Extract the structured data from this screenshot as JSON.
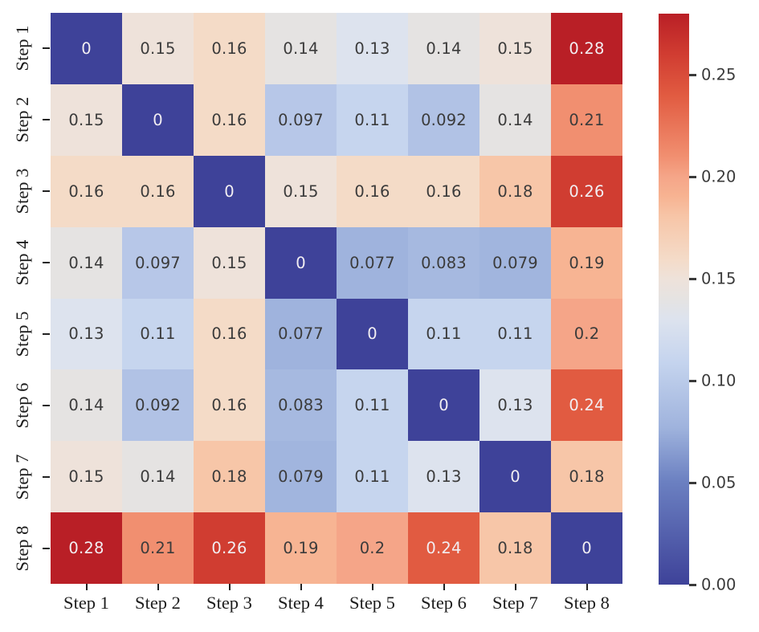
{
  "figure": {
    "background": "#ffffff"
  },
  "chart_data": {
    "type": "heatmap",
    "title": "",
    "xlabel": "",
    "ylabel": "",
    "row_labels": [
      "Step 1",
      "Step 2",
      "Step 3",
      "Step 4",
      "Step 5",
      "Step 6",
      "Step 7",
      "Step 8"
    ],
    "col_labels": [
      "Step 1",
      "Step 2",
      "Step 3",
      "Step 4",
      "Step 5",
      "Step 6",
      "Step 7",
      "Step 8"
    ],
    "matrix": [
      [
        "0",
        "0.15",
        "0.16",
        "0.14",
        "0.13",
        "0.14",
        "0.15",
        "0.28"
      ],
      [
        "0.15",
        "0",
        "0.16",
        "0.097",
        "0.11",
        "0.092",
        "0.14",
        "0.21"
      ],
      [
        "0.16",
        "0.16",
        "0",
        "0.15",
        "0.16",
        "0.16",
        "0.18",
        "0.26"
      ],
      [
        "0.14",
        "0.097",
        "0.15",
        "0",
        "0.077",
        "0.083",
        "0.079",
        "0.19"
      ],
      [
        "0.13",
        "0.11",
        "0.16",
        "0.077",
        "0",
        "0.11",
        "0.11",
        "0.2"
      ],
      [
        "0.14",
        "0.092",
        "0.16",
        "0.083",
        "0.11",
        "0",
        "0.13",
        "0.24"
      ],
      [
        "0.15",
        "0.14",
        "0.18",
        "0.079",
        "0.11",
        "0.13",
        "0",
        "0.18"
      ],
      [
        "0.28",
        "0.21",
        "0.26",
        "0.19",
        "0.2",
        "0.24",
        "0.18",
        "0"
      ]
    ],
    "vmin": 0,
    "vmax": 0.28,
    "grid": false,
    "colorbar": {
      "position": "right",
      "ticks": [
        {
          "label": "0.00",
          "value": 0.0
        },
        {
          "label": "0.05",
          "value": 0.05
        },
        {
          "label": "0.10",
          "value": 0.1
        },
        {
          "label": "0.15",
          "value": 0.15
        },
        {
          "label": "0.20",
          "value": 0.2
        },
        {
          "label": "0.25",
          "value": 0.25
        }
      ]
    },
    "colormap_name": "coolwarm-diverging",
    "colormap_stops": [
      {
        "t": 0.0,
        "color": "#3e4299"
      },
      {
        "t": 0.18,
        "color": "#6b80c1"
      },
      {
        "t": 0.275,
        "color": "#9fb3dd"
      },
      {
        "t": 0.39,
        "color": "#c5d4ee"
      },
      {
        "t": 0.465,
        "color": "#dde3ee"
      },
      {
        "t": 0.5,
        "color": "#e5e3e2"
      },
      {
        "t": 0.535,
        "color": "#eee2da"
      },
      {
        "t": 0.57,
        "color": "#f4dbc8"
      },
      {
        "t": 0.645,
        "color": "#f7c5a7"
      },
      {
        "t": 0.68,
        "color": "#f7b392"
      },
      {
        "t": 0.715,
        "color": "#f5a588"
      },
      {
        "t": 0.75,
        "color": "#f18f70"
      },
      {
        "t": 0.857,
        "color": "#e15b41"
      },
      {
        "t": 0.93,
        "color": "#d03c31"
      },
      {
        "t": 1.0,
        "color": "#b91f26"
      }
    ],
    "annotation_dark_color": "#3b3b3b",
    "annotation_light_color": "#f2eef2",
    "axis_label_color": "#1d1d1d",
    "tick_color": "#222222",
    "colorbar_tick_color": "#3a3a3a"
  }
}
